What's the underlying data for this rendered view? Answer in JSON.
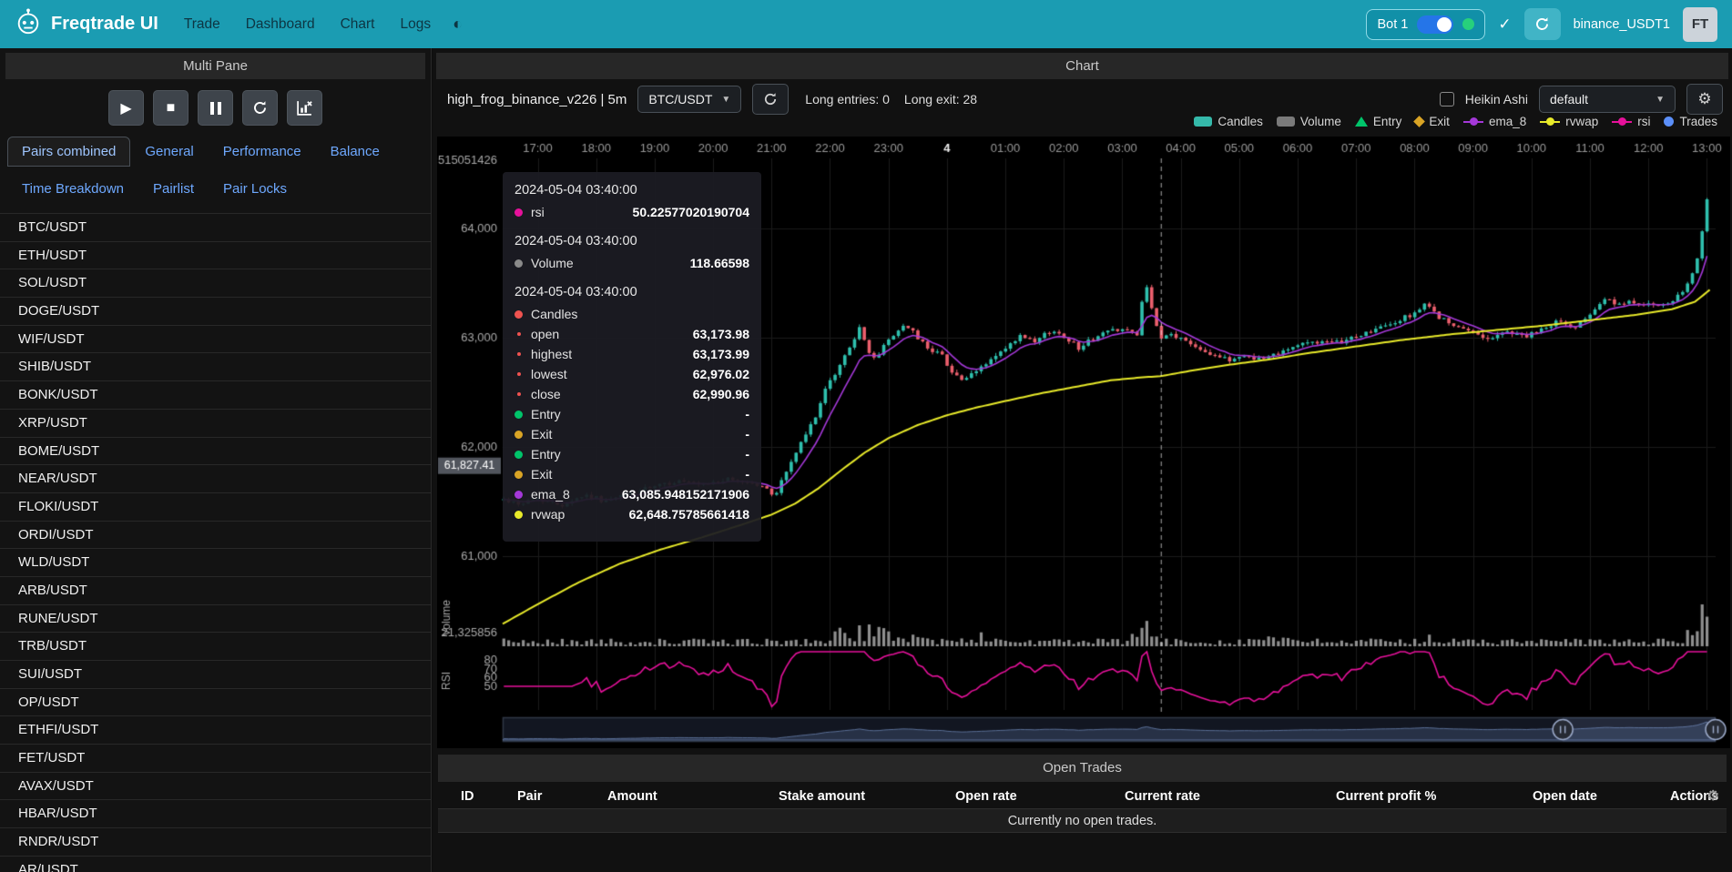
{
  "navbar": {
    "title": "Freqtrade UI",
    "links": [
      "Trade",
      "Dashboard",
      "Chart",
      "Logs"
    ],
    "bot": {
      "label": "Bot 1",
      "online": true
    },
    "account": "binance_USDT1",
    "avatar": "FT"
  },
  "left_panel": {
    "header": "Multi Pane",
    "tabs_row1": [
      "Pairs combined",
      "General",
      "Performance",
      "Balance"
    ],
    "tabs_row2": [
      "Time Breakdown",
      "Pairlist",
      "Pair Locks"
    ],
    "active_tab": "Pairs combined",
    "pairs": [
      "BTC/USDT",
      "ETH/USDT",
      "SOL/USDT",
      "DOGE/USDT",
      "WIF/USDT",
      "SHIB/USDT",
      "BONK/USDT",
      "XRP/USDT",
      "BOME/USDT",
      "NEAR/USDT",
      "FLOKI/USDT",
      "ORDI/USDT",
      "WLD/USDT",
      "ARB/USDT",
      "RUNE/USDT",
      "TRB/USDT",
      "SUI/USDT",
      "OP/USDT",
      "ETHFI/USDT",
      "FET/USDT",
      "AVAX/USDT",
      "HBAR/USDT",
      "RNDR/USDT",
      "AR/USDT"
    ]
  },
  "chart_panel": {
    "header": "Chart",
    "toolbar": {
      "strategy": "high_frog_binance_v226 | 5m",
      "pair": "BTC/USDT",
      "long_entries": "Long entries: 0",
      "long_exit": "Long exit: 28",
      "heikin_ashi": "Heikin Ashi",
      "plot_config": "default"
    },
    "legend": [
      {
        "label": "Candles",
        "shape": "rect",
        "color": "#35b9aa"
      },
      {
        "label": "Volume",
        "shape": "rect",
        "color": "#7a7a7a"
      },
      {
        "label": "Entry",
        "shape": "triangle",
        "color": "#00c46a"
      },
      {
        "label": "Exit",
        "shape": "diamond",
        "color": "#d9a425"
      },
      {
        "label": "ema_8",
        "shape": "line",
        "color": "#a438d8"
      },
      {
        "label": "rvwap",
        "shape": "line",
        "color": "#e8ea2a"
      },
      {
        "label": "rsi",
        "shape": "line",
        "color": "#e6119b"
      },
      {
        "label": "Trades",
        "shape": "circle",
        "color": "#5b8ff9"
      }
    ],
    "tooltip": {
      "sections": [
        {
          "date": "2024-05-04 03:40:00",
          "rows": [
            {
              "name": "rsi",
              "color": "#e6119b",
              "value": "50.22577020190704"
            }
          ]
        },
        {
          "date": "2024-05-04 03:40:00",
          "rows": [
            {
              "name": "Volume",
              "color": "#8a8a8a",
              "value": "118.66598"
            }
          ]
        },
        {
          "date": "2024-05-04 03:40:00",
          "rows": [
            {
              "name": "Candles",
              "color": "#ef5350",
              "value": ""
            },
            {
              "name": "open",
              "color": "#ef5350",
              "small": true,
              "value": "63,173.98"
            },
            {
              "name": "highest",
              "color": "#ef5350",
              "small": true,
              "value": "63,173.99"
            },
            {
              "name": "lowest",
              "color": "#ef5350",
              "small": true,
              "value": "62,976.02"
            },
            {
              "name": "close",
              "color": "#ef5350",
              "small": true,
              "value": "62,990.96"
            },
            {
              "name": "Entry",
              "color": "#00c46a",
              "value": "-"
            },
            {
              "name": "Exit",
              "color": "#d9a425",
              "value": "-"
            },
            {
              "name": "Entry",
              "color": "#00c46a",
              "value": "-"
            },
            {
              "name": "Exit",
              "color": "#d9a425",
              "value": "-"
            },
            {
              "name": "ema_8",
              "color": "#a438d8",
              "value": "63,085.948152171906"
            },
            {
              "name": "rvwap",
              "color": "#e8ea2a",
              "value": "62,648.75785661418"
            }
          ]
        }
      ]
    }
  },
  "open_trades": {
    "header": "Open Trades",
    "columns": [
      "ID",
      "Pair",
      "Amount",
      "Stake amount",
      "Open rate",
      "Current rate",
      "Current profit %",
      "Open date",
      "Actions"
    ],
    "empty_message": "Currently no open trades."
  },
  "chart_data": {
    "type": "candlestick",
    "pair": "BTC/USDT",
    "timeframe": "5m",
    "x_axis": {
      "labels": [
        "17:00",
        "18:00",
        "19:00",
        "20:00",
        "21:00",
        "22:00",
        "23:00",
        "4",
        "01:00",
        "02:00",
        "03:00",
        "04:00",
        "05:00",
        "06:00",
        "07:00",
        "08:00",
        "09:00",
        "10:00",
        "11:00",
        "12:00",
        "13:00"
      ],
      "emphasized": "4"
    },
    "y_axis": {
      "ticks": [
        "64,000",
        "63,000",
        "62,000",
        "61,000"
      ],
      "values": [
        64000,
        63000,
        62000,
        61000
      ],
      "top_label": "515051426"
    },
    "volume_axis_label": "21,325856",
    "rsi_ticks": [
      "80",
      "70",
      "60",
      "50"
    ],
    "axis_names": {
      "volume": "Volume",
      "rsi": "RSI"
    },
    "crosshair": {
      "time_h": 10.6667,
      "price": 61827.41,
      "price_label": "61,827.41"
    },
    "series_colors": {
      "up": "#2fc0ae",
      "down": "#ec5f6d",
      "ema_8": "#a438d8",
      "rvwap": "#e8ea2a",
      "rsi": "#e6119b",
      "volume": "#8f8f8f"
    },
    "close_anchors": [
      [
        -0.6,
        61520
      ],
      [
        -0.3,
        61480
      ],
      [
        0,
        61530
      ],
      [
        0.4,
        61470
      ],
      [
        0.8,
        61560
      ],
      [
        1.2,
        61500
      ],
      [
        1.6,
        61580
      ],
      [
        2.0,
        61630
      ],
      [
        2.4,
        61690
      ],
      [
        2.8,
        61640
      ],
      [
        3.2,
        61700
      ],
      [
        3.6,
        61680
      ],
      [
        3.9,
        61620
      ],
      [
        4.05,
        61550
      ],
      [
        4.2,
        61720
      ],
      [
        4.45,
        61980
      ],
      [
        4.7,
        62220
      ],
      [
        4.95,
        62550
      ],
      [
        5.15,
        62720
      ],
      [
        5.35,
        62940
      ],
      [
        5.5,
        63080
      ],
      [
        5.65,
        62890
      ],
      [
        5.8,
        62790
      ],
      [
        5.95,
        62960
      ],
      [
        6.1,
        63030
      ],
      [
        6.3,
        63130
      ],
      [
        6.5,
        62990
      ],
      [
        6.7,
        62900
      ],
      [
        6.9,
        62850
      ],
      [
        7.1,
        62680
      ],
      [
        7.3,
        62600
      ],
      [
        7.5,
        62690
      ],
      [
        7.75,
        62800
      ],
      [
        8.0,
        62890
      ],
      [
        8.25,
        63010
      ],
      [
        8.5,
        62950
      ],
      [
        8.75,
        63060
      ],
      [
        9.0,
        63020
      ],
      [
        9.25,
        62910
      ],
      [
        9.5,
        62990
      ],
      [
        9.75,
        63060
      ],
      [
        10.0,
        63090
      ],
      [
        10.2,
        63040
      ],
      [
        10.3,
        62980
      ],
      [
        10.37,
        63620
      ],
      [
        10.5,
        63260
      ],
      [
        10.6,
        63060
      ],
      [
        10.67,
        62990
      ],
      [
        10.85,
        63030
      ],
      [
        11.0,
        62990
      ],
      [
        11.2,
        62940
      ],
      [
        11.5,
        62860
      ],
      [
        11.8,
        62790
      ],
      [
        12.1,
        62840
      ],
      [
        12.4,
        62800
      ],
      [
        12.7,
        62880
      ],
      [
        13.0,
        62930
      ],
      [
        13.3,
        62970
      ],
      [
        13.6,
        62940
      ],
      [
        14.0,
        63010
      ],
      [
        14.3,
        63070
      ],
      [
        14.6,
        63120
      ],
      [
        14.9,
        63200
      ],
      [
        15.2,
        63300
      ],
      [
        15.45,
        63180
      ],
      [
        15.7,
        63090
      ],
      [
        16.0,
        63050
      ],
      [
        16.3,
        62990
      ],
      [
        16.6,
        63060
      ],
      [
        16.9,
        63010
      ],
      [
        17.2,
        63070
      ],
      [
        17.45,
        63160
      ],
      [
        17.7,
        63080
      ],
      [
        18.0,
        63230
      ],
      [
        18.25,
        63360
      ],
      [
        18.5,
        63290
      ],
      [
        18.75,
        63330
      ],
      [
        19.0,
        63310
      ],
      [
        19.2,
        63270
      ],
      [
        19.4,
        63330
      ],
      [
        19.6,
        63420
      ],
      [
        19.75,
        63560
      ],
      [
        19.88,
        63840
      ],
      [
        19.97,
        64180
      ],
      [
        20.04,
        64360
      ],
      [
        20.1,
        64150
      ]
    ],
    "rvwap_anchors": [
      [
        -0.6,
        60380
      ],
      [
        0,
        60560
      ],
      [
        0.7,
        60760
      ],
      [
        1.4,
        60930
      ],
      [
        2.1,
        61060
      ],
      [
        2.8,
        61170
      ],
      [
        3.5,
        61290
      ],
      [
        4.0,
        61380
      ],
      [
        4.4,
        61480
      ],
      [
        4.8,
        61620
      ],
      [
        5.2,
        61790
      ],
      [
        5.6,
        61950
      ],
      [
        6.0,
        62080
      ],
      [
        6.5,
        62200
      ],
      [
        7.0,
        62290
      ],
      [
        7.5,
        62360
      ],
      [
        8.0,
        62420
      ],
      [
        8.6,
        62490
      ],
      [
        9.2,
        62550
      ],
      [
        9.8,
        62610
      ],
      [
        10.3,
        62635
      ],
      [
        10.67,
        62649
      ],
      [
        11.2,
        62700
      ],
      [
        11.8,
        62750
      ],
      [
        12.5,
        62800
      ],
      [
        13.2,
        62860
      ],
      [
        14.0,
        62920
      ],
      [
        14.8,
        62980
      ],
      [
        15.6,
        63030
      ],
      [
        16.4,
        63070
      ],
      [
        17.2,
        63110
      ],
      [
        18.0,
        63160
      ],
      [
        18.8,
        63210
      ],
      [
        19.4,
        63260
      ],
      [
        19.8,
        63330
      ],
      [
        20.1,
        63460
      ]
    ],
    "volume_bumps": [
      {
        "h": 5.5,
        "amp": 2.2,
        "s": 0.35
      },
      {
        "h": 6.3,
        "amp": 1.2,
        "s": 0.25
      },
      {
        "h": 7.6,
        "amp": 0.9,
        "s": 0.2
      },
      {
        "h": 10.37,
        "amp": 3.2,
        "s": 0.12
      },
      {
        "h": 12.5,
        "amp": 0.8,
        "s": 0.2
      },
      {
        "h": 15.2,
        "amp": 1.0,
        "s": 0.15
      },
      {
        "h": 19.95,
        "amp": 4.5,
        "s": 0.18
      }
    ],
    "zoom_window": [
      0.874,
      1.0
    ]
  }
}
